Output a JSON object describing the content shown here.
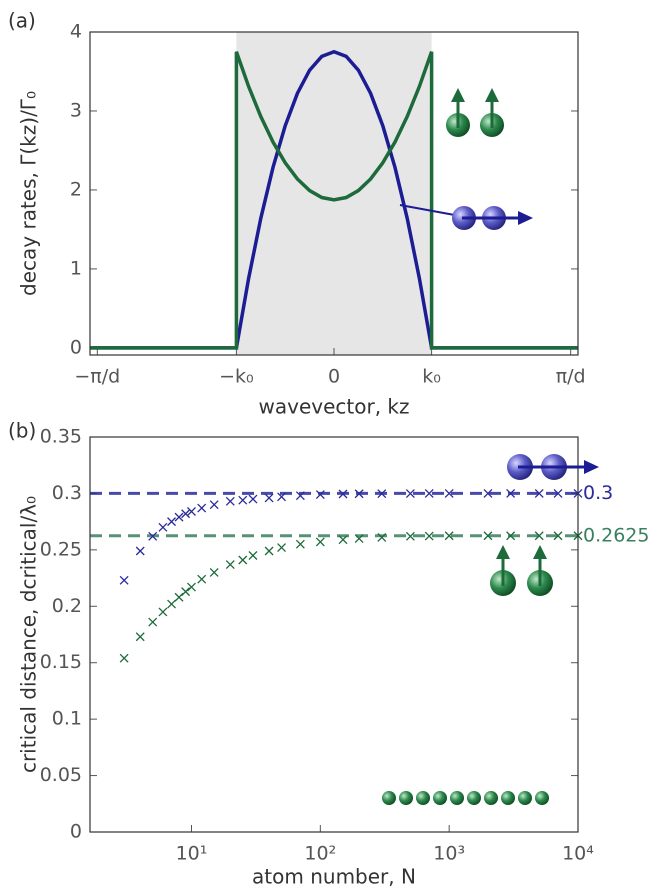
{
  "chart_data": [
    {
      "type": "line",
      "panel_label": "(a)",
      "x_label": "wavevector, kz",
      "y_label": "decay rates, Γ(kz)/Γ₀",
      "x": [
        -1,
        -0.4,
        -0.4,
        -0.35,
        -0.3,
        -0.25,
        -0.2,
        -0.15,
        -0.1,
        -0.05,
        0,
        0.05,
        0.1,
        0.15,
        0.2,
        0.25,
        0.3,
        0.35,
        0.4,
        0.4,
        1
      ],
      "series": [
        {
          "color": "#1c1c94",
          "values": [
            0,
            0,
            0,
            0.879,
            1.641,
            2.285,
            2.8125,
            3.223,
            3.516,
            3.691,
            3.75,
            3.691,
            3.516,
            3.223,
            2.8125,
            2.285,
            1.641,
            0.879,
            0,
            0,
            0
          ]
        },
        {
          "color": "#1d6a3b",
          "values": [
            0,
            0,
            3.75,
            3.311,
            2.93,
            2.607,
            2.344,
            2.139,
            1.992,
            1.904,
            1.875,
            1.904,
            1.992,
            2.139,
            2.344,
            2.607,
            2.93,
            3.311,
            3.75,
            0,
            0
          ]
        }
      ],
      "shaded_range": [
        -0.4,
        0.4
      ],
      "xlim": [
        -1,
        1
      ],
      "ylim": [
        -0.09,
        4
      ],
      "xticks": [
        {
          "value": -0.97,
          "label": "−π/d"
        },
        {
          "value": -0.4,
          "label": "−k₀"
        },
        {
          "value": 0,
          "label": "0"
        },
        {
          "value": 0.4,
          "label": "k₀"
        },
        {
          "value": 0.97,
          "label": "π/d"
        }
      ],
      "yticks": [
        0,
        1,
        2,
        3,
        4
      ]
    },
    {
      "type": "scatter",
      "panel_label": "(b)",
      "x_label": "atom number, N",
      "y_label": "critical distance, dcritical/λ₀",
      "xscale": "log",
      "series": [
        {
          "color": "#2a2a9c",
          "x": [
            3,
            4,
            5,
            6,
            7,
            8,
            9,
            10,
            12,
            15,
            20,
            25,
            30,
            40,
            50,
            70,
            100,
            150,
            200,
            300,
            500,
            700,
            1000,
            2000,
            3000,
            5000,
            7000,
            10000
          ],
          "values": [
            0.223,
            0.249,
            0.262,
            0.27,
            0.275,
            0.279,
            0.282,
            0.284,
            0.287,
            0.29,
            0.293,
            0.294,
            0.295,
            0.296,
            0.297,
            0.298,
            0.299,
            0.2995,
            0.2997,
            0.2998,
            0.2999,
            0.3,
            0.3,
            0.3,
            0.3,
            0.3,
            0.3,
            0.3
          ]
        },
        {
          "color": "#1d6a3b",
          "x": [
            3,
            4,
            5,
            6,
            7,
            8,
            9,
            10,
            12,
            15,
            20,
            25,
            30,
            40,
            50,
            70,
            100,
            150,
            200,
            300,
            500,
            700,
            1000,
            2000,
            3000,
            5000,
            7000,
            10000
          ],
          "values": [
            0.154,
            0.173,
            0.186,
            0.195,
            0.202,
            0.208,
            0.213,
            0.217,
            0.224,
            0.23,
            0.237,
            0.241,
            0.245,
            0.249,
            0.252,
            0.255,
            0.257,
            0.259,
            0.26,
            0.261,
            0.262,
            0.2622,
            0.2625,
            0.2625,
            0.2625,
            0.2625,
            0.2625,
            0.2625
          ]
        }
      ],
      "reference_lines": [
        {
          "value": 0.3,
          "color": "#2a2a9c"
        },
        {
          "value": 0.2625,
          "color": "#3a8060"
        }
      ],
      "xlim": [
        1.63,
        10000
      ],
      "ylim": [
        0,
        0.35
      ],
      "xticks": [
        {
          "value": 10,
          "label": "10¹"
        },
        {
          "value": 100,
          "label": "10²"
        },
        {
          "value": 1000,
          "label": "10³"
        },
        {
          "value": 10000,
          "label": "10⁴"
        }
      ],
      "yticks": [
        0,
        0.05,
        0.1,
        0.15,
        0.2,
        0.25,
        0.3,
        0.35
      ]
    }
  ]
}
